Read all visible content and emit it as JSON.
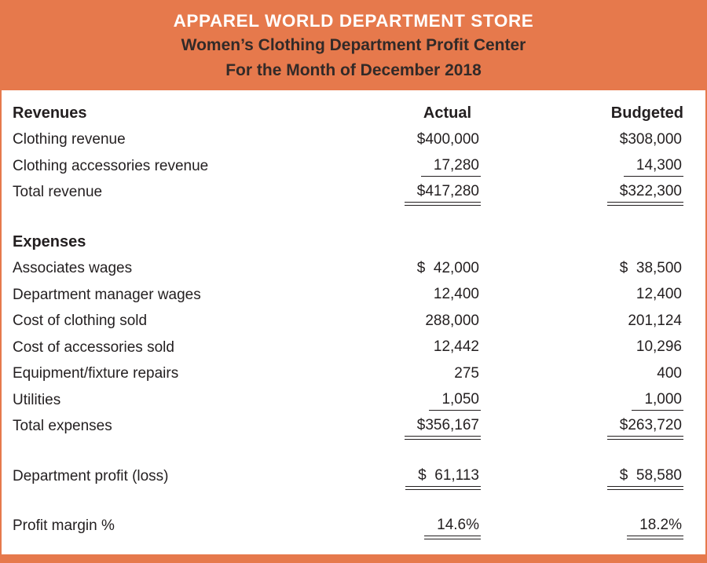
{
  "colors": {
    "accent": "#e6794c",
    "title_text": "#ffffff",
    "subtitle_text": "#322a28",
    "body_text": "#231f20"
  },
  "header": {
    "line1": "APPAREL WORLD DEPARTMENT STORE",
    "line2": "Women’s Clothing Department Profit Center",
    "line3": "For the Month of December 2018"
  },
  "table": {
    "rows": [
      {
        "label": "Revenues",
        "actual": "Actual",
        "budgeted": "Budgeted"
      },
      {
        "label": "Clothing revenue",
        "actual": "$400,000",
        "budgeted": "$308,000"
      },
      {
        "label": "Clothing accessories revenue",
        "actual": "17,280",
        "budgeted": "14,300"
      },
      {
        "label": "Total revenue",
        "actual": "$417,280",
        "budgeted": "$322,300"
      },
      {
        "label": "Expenses",
        "actual": "",
        "budgeted": ""
      },
      {
        "label": "Associates wages",
        "actual": "$  42,000",
        "budgeted": "$  38,500"
      },
      {
        "label": "Department manager wages",
        "actual": "12,400",
        "budgeted": "12,400"
      },
      {
        "label": "Cost of clothing sold",
        "actual": "288,000",
        "budgeted": "201,124"
      },
      {
        "label": "Cost of accessories sold",
        "actual": "12,442",
        "budgeted": "10,296"
      },
      {
        "label": "Equipment/fixture repairs",
        "actual": "275",
        "budgeted": "400"
      },
      {
        "label": "Utilities",
        "actual": "1,050",
        "budgeted": "1,000"
      },
      {
        "label": "Total expenses",
        "actual": "$356,167",
        "budgeted": "$263,720"
      },
      {
        "label": "Department profit (loss)",
        "actual": "$  61,113",
        "budgeted": "$  58,580"
      },
      {
        "label": "Profit margin %",
        "actual": "14.6%",
        "budgeted": "18.2%"
      }
    ]
  }
}
